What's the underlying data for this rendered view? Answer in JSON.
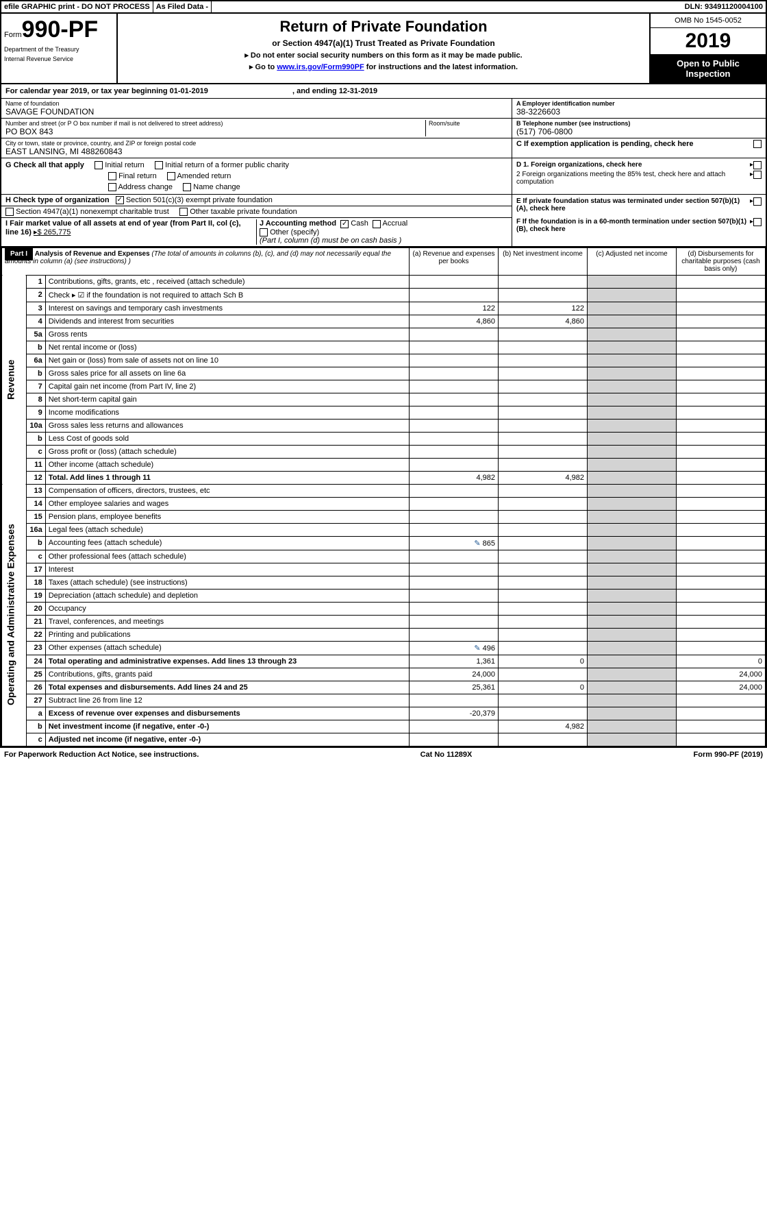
{
  "topbar": {
    "efile": "efile GRAPHIC print - DO NOT PROCESS",
    "asfiled": "As Filed Data -",
    "dln": "DLN: 93491120004100"
  },
  "header": {
    "form_prefix": "Form",
    "form_num": "990-PF",
    "dept": "Department of the Treasury",
    "irs": "Internal Revenue Service",
    "title": "Return of Private Foundation",
    "subtitle": "or Section 4947(a)(1) Trust Treated as Private Foundation",
    "note1": "▸ Do not enter social security numbers on this form as it may be made public.",
    "note2_pre": "▸ Go to ",
    "note2_link": "www.irs.gov/Form990PF",
    "note2_post": " for instructions and the latest information.",
    "omb": "OMB No 1545-0052",
    "year": "2019",
    "open": "Open to Public Inspection"
  },
  "cal": {
    "text": "For calendar year 2019, or tax year beginning 01-01-2019",
    "ending": ", and ending 12-31-2019"
  },
  "info": {
    "name_lbl": "Name of foundation",
    "name": "SAVAGE FOUNDATION",
    "ein_lbl": "A Employer identification number",
    "ein": "38-3226603",
    "addr_lbl": "Number and street (or P O  box number if mail is not delivered to street address)",
    "addr": "PO BOX 843",
    "room_lbl": "Room/suite",
    "tel_lbl": "B Telephone number (see instructions)",
    "tel": "(517) 706-0800",
    "city_lbl": "City or town, state or province, country, and ZIP or foreign postal code",
    "city": "EAST LANSING, MI  488260843",
    "c_lbl": "C If exemption application is pending, check here"
  },
  "G": {
    "lbl": "G Check all that apply",
    "opts": [
      "Initial return",
      "Initial return of a former public charity",
      "Final return",
      "Amended return",
      "Address change",
      "Name change"
    ]
  },
  "D": {
    "d1": "D 1. Foreign organizations, check here",
    "d2": "2 Foreign organizations meeting the 85% test, check here and attach computation",
    "e": "E  If private foundation status was terminated under section 507(b)(1)(A), check here",
    "f": "F  If the foundation is in a 60-month termination under section 507(b)(1)(B), check here"
  },
  "H": {
    "lbl": "H Check type of organization",
    "opt1": "Section 501(c)(3) exempt private foundation",
    "opt2": "Section 4947(a)(1) nonexempt charitable trust",
    "opt3": "Other taxable private foundation"
  },
  "I": {
    "lbl": "I Fair market value of all assets at end of year (from Part II, col  (c), line 16)",
    "val": "▸$  265,775"
  },
  "J": {
    "lbl": "J Accounting method",
    "cash": "Cash",
    "accrual": "Accrual",
    "other": "Other (specify)",
    "note": "(Part I, column (d) must be on cash basis )"
  },
  "part1": {
    "label": "Part I",
    "title": "Analysis of Revenue and Expenses",
    "title_note": " (The total of amounts in columns (b), (c), and (d) may not necessarily equal the amounts in column (a) (see instructions) )",
    "col_a": "(a) Revenue and expenses per books",
    "col_b": "(b) Net investment income",
    "col_c": "(c) Adjusted net income",
    "col_d": "(d) Disbursements for charitable purposes (cash basis only)"
  },
  "sections": {
    "revenue": "Revenue",
    "expenses": "Operating and Administrative Expenses"
  },
  "rows": [
    {
      "n": "1",
      "d": "Contributions, gifts, grants, etc , received (attach schedule)"
    },
    {
      "n": "2",
      "d": "Check ▸ ☑ if the foundation is not required to attach Sch B"
    },
    {
      "n": "3",
      "d": "Interest on savings and temporary cash investments",
      "a": "122",
      "b": "122"
    },
    {
      "n": "4",
      "d": "Dividends and interest from securities",
      "a": "4,860",
      "b": "4,860"
    },
    {
      "n": "5a",
      "d": "Gross rents"
    },
    {
      "n": "b",
      "d": "Net rental income or (loss)"
    },
    {
      "n": "6a",
      "d": "Net gain or (loss) from sale of assets not on line 10"
    },
    {
      "n": "b",
      "d": "Gross sales price for all assets on line 6a"
    },
    {
      "n": "7",
      "d": "Capital gain net income (from Part IV, line 2)"
    },
    {
      "n": "8",
      "d": "Net short-term capital gain"
    },
    {
      "n": "9",
      "d": "Income modifications"
    },
    {
      "n": "10a",
      "d": "Gross sales less returns and allowances"
    },
    {
      "n": "b",
      "d": "Less  Cost of goods sold"
    },
    {
      "n": "c",
      "d": "Gross profit or (loss) (attach schedule)"
    },
    {
      "n": "11",
      "d": "Other income (attach schedule)"
    },
    {
      "n": "12",
      "d": "Total. Add lines 1 through 11",
      "a": "4,982",
      "b": "4,982",
      "bold": true
    },
    {
      "n": "13",
      "d": "Compensation of officers, directors, trustees, etc"
    },
    {
      "n": "14",
      "d": "Other employee salaries and wages"
    },
    {
      "n": "15",
      "d": "Pension plans, employee benefits"
    },
    {
      "n": "16a",
      "d": "Legal fees (attach schedule)"
    },
    {
      "n": "b",
      "d": "Accounting fees (attach schedule)",
      "a": "865",
      "icon": true
    },
    {
      "n": "c",
      "d": "Other professional fees (attach schedule)"
    },
    {
      "n": "17",
      "d": "Interest"
    },
    {
      "n": "18",
      "d": "Taxes (attach schedule) (see instructions)"
    },
    {
      "n": "19",
      "d": "Depreciation (attach schedule) and depletion"
    },
    {
      "n": "20",
      "d": "Occupancy"
    },
    {
      "n": "21",
      "d": "Travel, conferences, and meetings"
    },
    {
      "n": "22",
      "d": "Printing and publications"
    },
    {
      "n": "23",
      "d": "Other expenses (attach schedule)",
      "a": "496",
      "icon": true
    },
    {
      "n": "24",
      "d": "Total operating and administrative expenses. Add lines 13 through 23",
      "a": "1,361",
      "b": "0",
      "dd": "0",
      "bold": true
    },
    {
      "n": "25",
      "d": "Contributions, gifts, grants paid",
      "a": "24,000",
      "dd": "24,000"
    },
    {
      "n": "26",
      "d": "Total expenses and disbursements. Add lines 24 and 25",
      "a": "25,361",
      "b": "0",
      "dd": "24,000",
      "bold": true
    },
    {
      "n": "27",
      "d": "Subtract line 26 from line 12"
    },
    {
      "n": "a",
      "d": "Excess of revenue over expenses and disbursements",
      "a": "-20,379",
      "bold": true
    },
    {
      "n": "b",
      "d": "Net investment income (if negative, enter -0-)",
      "b": "4,982",
      "bold": true
    },
    {
      "n": "c",
      "d": "Adjusted net income (if negative, enter -0-)",
      "bold": true
    }
  ],
  "footer": {
    "left": "For Paperwork Reduction Act Notice, see instructions.",
    "center": "Cat No  11289X",
    "right": "Form 990-PF (2019)"
  }
}
